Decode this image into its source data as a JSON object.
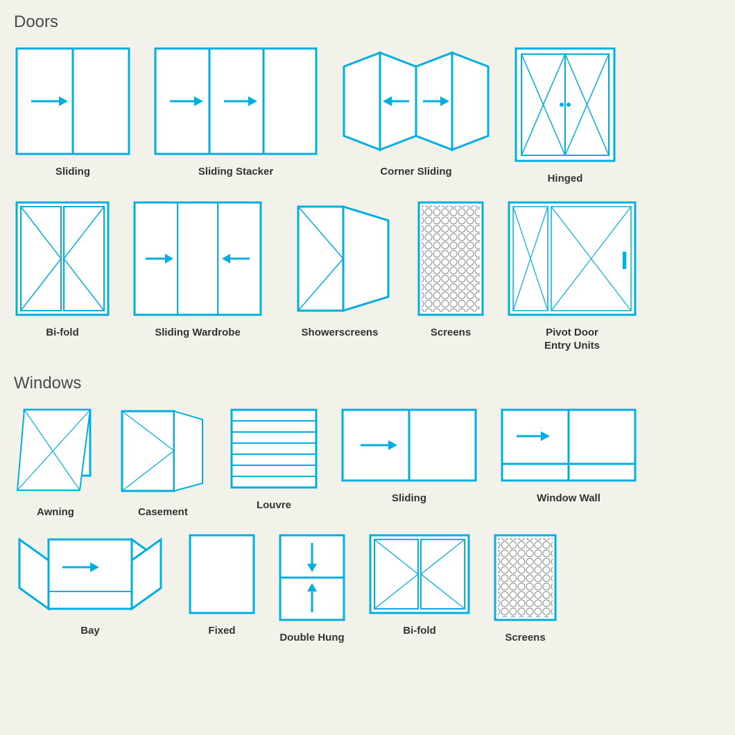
{
  "colors": {
    "background": "#f3f2ea",
    "stroke": "#00aee0",
    "text": "#333333",
    "heading": "#4a4a4a",
    "mesh": "#888888"
  },
  "stroke_width_outer": 3,
  "stroke_width_inner": 2,
  "sections": {
    "doors": {
      "title": "Doors",
      "items": [
        {
          "key": "sliding",
          "label": "Sliding"
        },
        {
          "key": "sliding_stacker",
          "label": "Sliding Stacker"
        },
        {
          "key": "corner_sliding",
          "label": "Corner Sliding"
        },
        {
          "key": "hinged",
          "label": "Hinged"
        },
        {
          "key": "bifold",
          "label": "Bi-fold"
        },
        {
          "key": "sliding_wardrobe",
          "label": "Sliding Wardrobe"
        },
        {
          "key": "showerscreens",
          "label": "Showerscreens"
        },
        {
          "key": "screens",
          "label": "Screens"
        },
        {
          "key": "pivot",
          "label": "Pivot Door\nEntry Units"
        }
      ]
    },
    "windows": {
      "title": "Windows",
      "items": [
        {
          "key": "awning",
          "label": "Awning"
        },
        {
          "key": "casement",
          "label": "Casement"
        },
        {
          "key": "louvre",
          "label": "Louvre"
        },
        {
          "key": "w_sliding",
          "label": "Sliding"
        },
        {
          "key": "window_wall",
          "label": "Window Wall"
        },
        {
          "key": "bay",
          "label": "Bay"
        },
        {
          "key": "fixed",
          "label": "Fixed"
        },
        {
          "key": "double_hung",
          "label": "Double Hung"
        },
        {
          "key": "w_bifold",
          "label": "Bi-fold"
        },
        {
          "key": "w_screens",
          "label": "Screens"
        }
      ]
    }
  }
}
